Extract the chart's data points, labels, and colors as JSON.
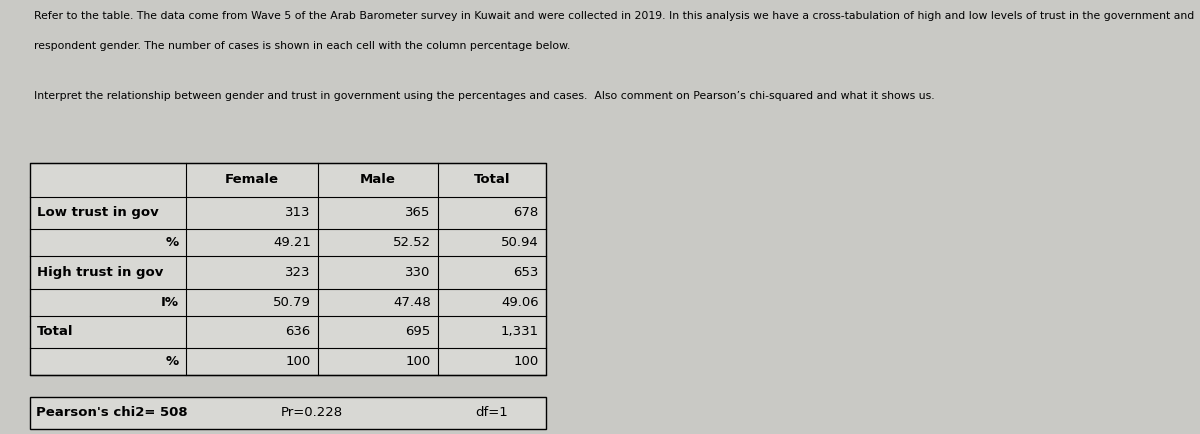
{
  "title_text1": "Refer to the table. The data come from Wave 5 of the Arab Barometer survey in Kuwait and were collected in 2019. In this analysis we have a cross-tabulation of high and low levels of trust in the government and",
  "title_text2": "respondent gender. The number of cases is shown in each cell with the column percentage below.",
  "subtitle": "Interpret the relationship between gender and trust in government using the percentages and cases.  Also comment on Pearson’s chi-squared and what it shows us.",
  "footer": "Pearson's chi2= 508",
  "footer_mid": "Pr=0.228",
  "footer_right": "df=1",
  "bg_color": "#c9c9c5",
  "table_bg": "#d8d8d4",
  "text_color": "#000000"
}
